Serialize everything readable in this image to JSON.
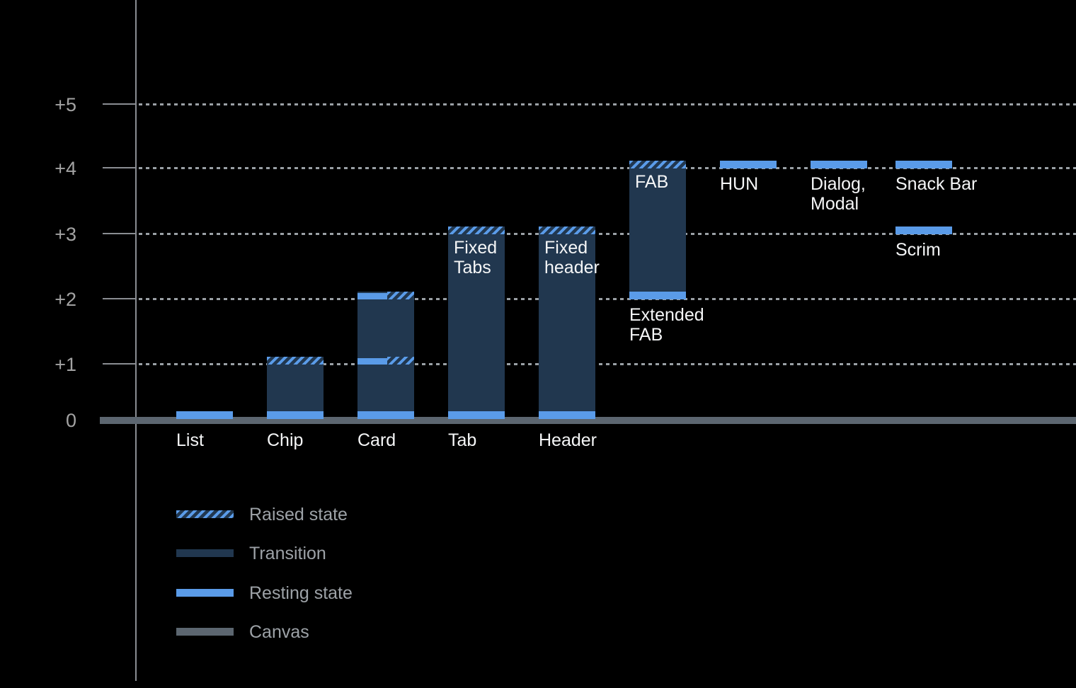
{
  "chart_data": {
    "type": "bar",
    "subtype": "elevation-diagram",
    "title": "",
    "xlabel": "",
    "ylabel": "",
    "grid": "dotted-horizontal",
    "legend_position": "bottom-left",
    "y_axis": {
      "tick_values": [
        0,
        1,
        2,
        3,
        4,
        5
      ],
      "tick_labels": [
        "0",
        "+1",
        "+2",
        "+3",
        "+4",
        "+5"
      ],
      "range": [
        0,
        5.6
      ]
    },
    "columns": [
      {
        "column": 0,
        "label": "List",
        "label_below_level": 0,
        "resting": [
          0
        ]
      },
      {
        "column": 1,
        "label": "Chip",
        "label_below_level": 0,
        "resting": [
          0
        ],
        "transition": [
          0,
          1
        ],
        "raised": [
          1
        ]
      },
      {
        "column": 2,
        "label": "Card",
        "label_below_level": 0,
        "resting": [
          0
        ],
        "transition": [
          0,
          2
        ],
        "resting_and_raised": [
          1,
          2
        ]
      },
      {
        "column": 3,
        "label": "Tab",
        "label_below_level": 0,
        "inner_label": "Fixed\nTabs",
        "resting": [
          0
        ],
        "transition": [
          0,
          3
        ],
        "raised": [
          3
        ]
      },
      {
        "column": 4,
        "label": "Header",
        "label_below_level": 0,
        "inner_label": "Fixed\nheader",
        "resting": [
          0
        ],
        "transition": [
          0,
          3
        ],
        "raised": [
          3
        ]
      },
      {
        "column": 5,
        "label": "Extended\nFAB",
        "label_below_level": 2,
        "inner_label": "FAB",
        "resting": [
          2
        ],
        "transition": [
          2,
          4
        ],
        "raised": [
          4
        ]
      },
      {
        "column": 6,
        "label": "HUN",
        "label_below_level": 4,
        "resting": [
          4
        ]
      },
      {
        "column": 7,
        "label": "Dialog,\nModal",
        "label_below_level": 4,
        "resting": [
          4
        ]
      },
      {
        "column": 8,
        "label": "Snack Bar",
        "label_below_level": 4,
        "resting": [
          4
        ]
      },
      {
        "column": 8,
        "label": "Scrim",
        "label_below_level": 3,
        "resting": [
          3
        ]
      }
    ],
    "legend": [
      {
        "label": "Raised state",
        "swatch": "raised"
      },
      {
        "label": "Transition",
        "swatch": "transition"
      },
      {
        "label": "Resting state",
        "swatch": "resting"
      },
      {
        "label": "Canvas",
        "swatch": "canvas"
      }
    ],
    "colors": {
      "background": "#000000",
      "resting": "#5a9be8",
      "transition": "#21374f",
      "canvas": "#5c6670",
      "axis": "#8a8d92",
      "gridline": "#9aa0a5",
      "tick_label": "#a3a3a3",
      "bar_label": "#f5f6f7",
      "legend_label": "#9da2a7"
    }
  }
}
